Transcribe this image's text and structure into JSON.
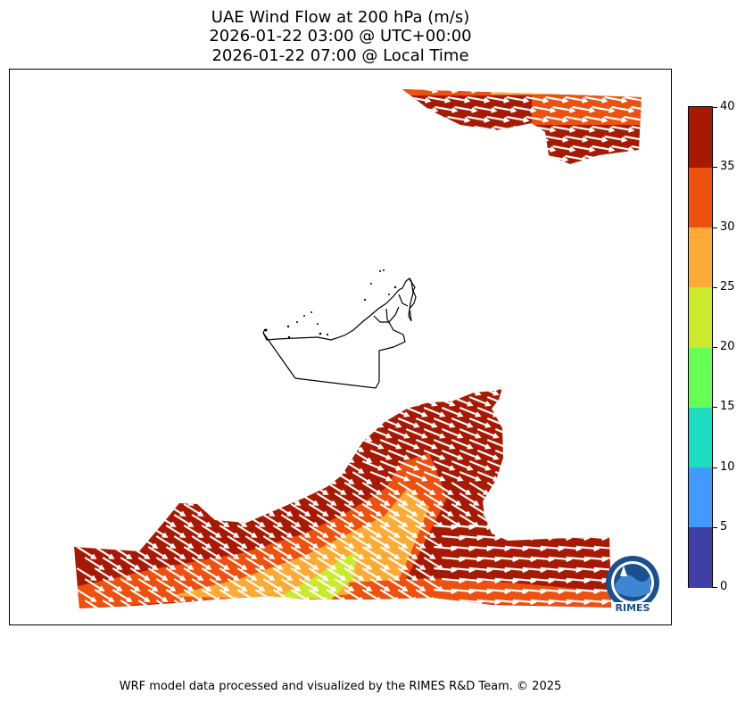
{
  "title": {
    "line1": "UAE Wind Flow at 200 hPa (m/s)",
    "line2": "2026-01-22 03:00 @ UTC+00:00",
    "line3": "2026-01-22 07:00 @ Local Time"
  },
  "footer": "WRF model data processed and visualized by the RIMES R&D Team. © 2025",
  "logo": {
    "text": "RIMES"
  },
  "colorbar": {
    "min": 0,
    "max": 40,
    "ticks": [
      "0",
      "5",
      "10",
      "15",
      "20",
      "25",
      "30",
      "35",
      "40"
    ],
    "bands": [
      {
        "from": 0,
        "to": 5,
        "color": "#3f3fa6"
      },
      {
        "from": 5,
        "to": 10,
        "color": "#4499ff"
      },
      {
        "from": 10,
        "to": 15,
        "color": "#1fdcc1"
      },
      {
        "from": 15,
        "to": 20,
        "color": "#66ff55"
      },
      {
        "from": 20,
        "to": 25,
        "color": "#cbe92f"
      },
      {
        "from": 25,
        "to": 30,
        "color": "#fdab37"
      },
      {
        "from": 30,
        "to": 35,
        "color": "#ec5110"
      },
      {
        "from": 35,
        "to": 40,
        "color": "#a61a04"
      }
    ]
  },
  "colors": {
    "wind_strong": "#a61a04",
    "wind_high": "#ec5110",
    "wind_mid": "#fdab37",
    "wind_low": "#cbe92f",
    "arrows": "#ffffff",
    "coastline": "#000000"
  },
  "wind": {
    "direction": "north-west to east-south-east flow",
    "speed_range_ms": [
      20,
      40
    ]
  }
}
